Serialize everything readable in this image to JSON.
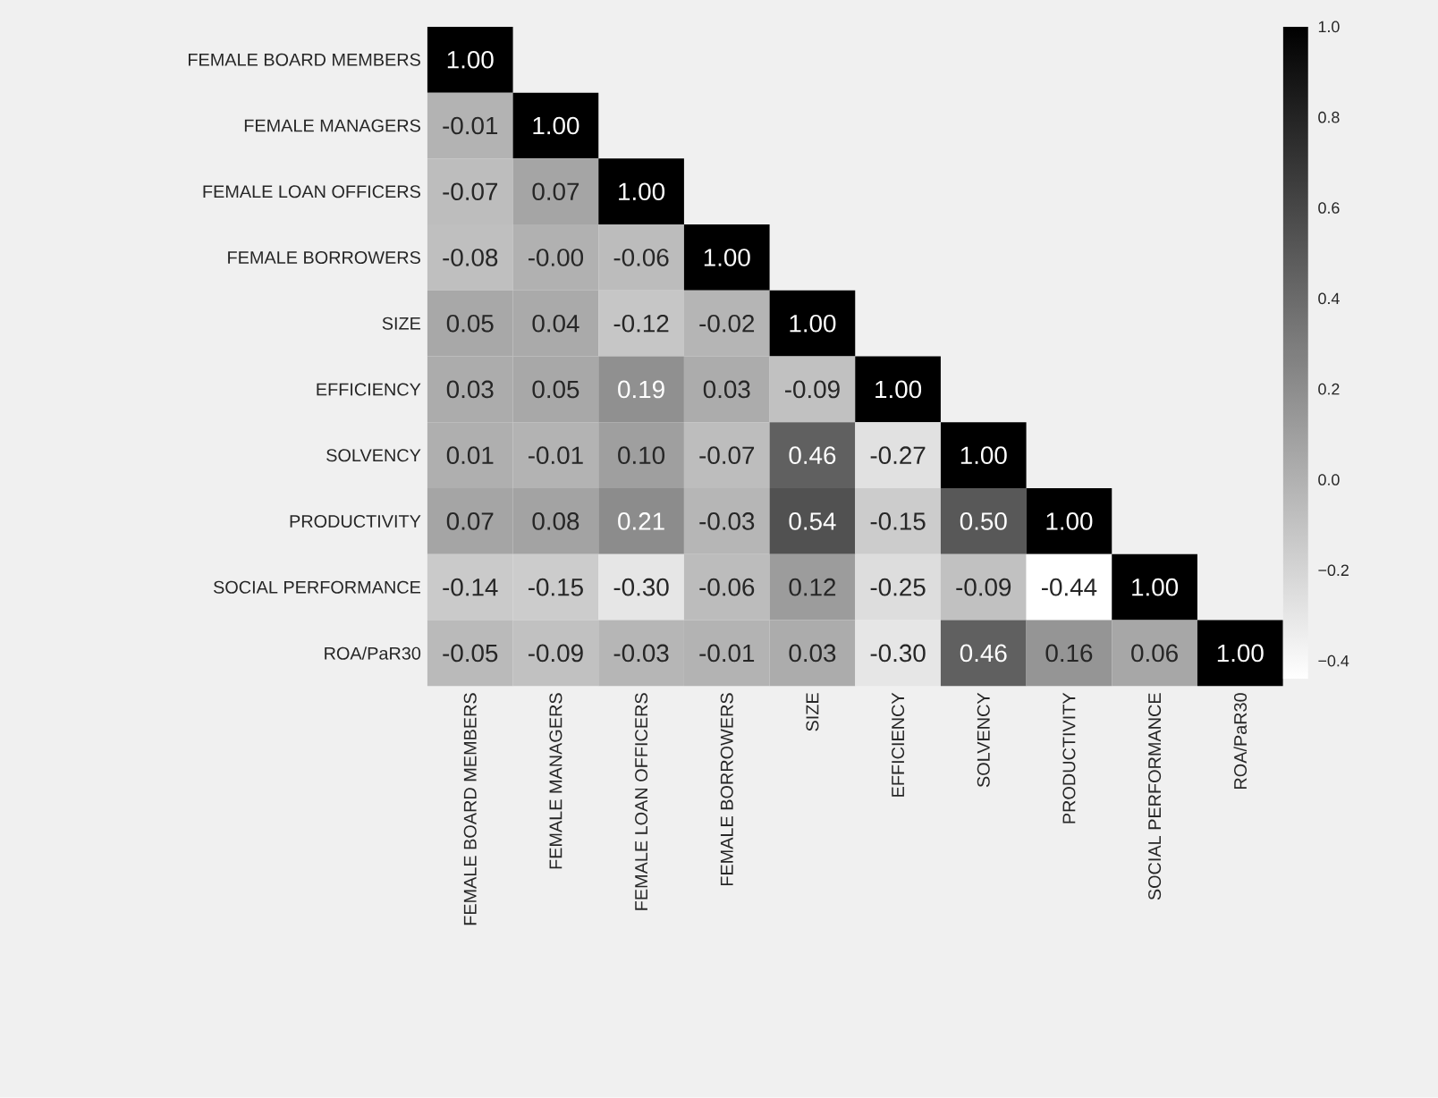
{
  "chart_data": {
    "type": "heatmap",
    "categories": [
      "FEMALE BOARD MEMBERS",
      "FEMALE MANAGERS",
      "FEMALE LOAN OFFICERS",
      "FEMALE BORROWERS",
      "SIZE",
      "EFFICIENCY",
      "SOLVENCY",
      "PRODUCTIVITY",
      "SOCIAL PERFORMANCE",
      "ROA/PaR30"
    ],
    "y_categories": [
      "FEMALE BOARD MEMBERS",
      "FEMALE MANAGERS",
      "FEMALE LOAN OFFICERS",
      "FEMALE BORROWERS",
      "SIZE",
      "EFFICIENCY",
      "SOLVENCY",
      "PRODUCTIVITY",
      "SOCIAL PERFORMANCE",
      "ROA/PaR30"
    ],
    "cells": [
      [
        1.0,
        null,
        null,
        null,
        null,
        null,
        null,
        null,
        null,
        null
      ],
      [
        -0.01,
        1.0,
        null,
        null,
        null,
        null,
        null,
        null,
        null,
        null
      ],
      [
        -0.07,
        0.07,
        1.0,
        null,
        null,
        null,
        null,
        null,
        null,
        null
      ],
      [
        -0.08,
        0.0,
        -0.06,
        1.0,
        null,
        null,
        null,
        null,
        null,
        null
      ],
      [
        0.05,
        0.04,
        -0.12,
        -0.02,
        1.0,
        null,
        null,
        null,
        null,
        null
      ],
      [
        0.03,
        0.05,
        0.19,
        0.03,
        -0.09,
        1.0,
        null,
        null,
        null,
        null
      ],
      [
        0.01,
        -0.01,
        0.1,
        -0.07,
        0.46,
        -0.27,
        1.0,
        null,
        null,
        null
      ],
      [
        0.07,
        0.08,
        0.21,
        -0.03,
        0.54,
        -0.15,
        0.5,
        1.0,
        null,
        null
      ],
      [
        -0.14,
        -0.15,
        -0.3,
        -0.06,
        0.12,
        -0.25,
        -0.09,
        -0.44,
        1.0,
        null
      ],
      [
        -0.05,
        -0.09,
        -0.03,
        -0.01,
        0.03,
        -0.3,
        0.46,
        0.16,
        0.06,
        1.0
      ]
    ],
    "cell_labels": [
      [
        "1.00",
        null,
        null,
        null,
        null,
        null,
        null,
        null,
        null,
        null
      ],
      [
        "-0.01",
        "1.00",
        null,
        null,
        null,
        null,
        null,
        null,
        null,
        null
      ],
      [
        "-0.07",
        "0.07",
        "1.00",
        null,
        null,
        null,
        null,
        null,
        null,
        null
      ],
      [
        "-0.08",
        "-0.00",
        "-0.06",
        "1.00",
        null,
        null,
        null,
        null,
        null,
        null
      ],
      [
        "0.05",
        "0.04",
        "-0.12",
        "-0.02",
        "1.00",
        null,
        null,
        null,
        null,
        null
      ],
      [
        "0.03",
        "0.05",
        "0.19",
        "0.03",
        "-0.09",
        "1.00",
        null,
        null,
        null,
        null
      ],
      [
        "0.01",
        "-0.01",
        "0.10",
        "-0.07",
        "0.46",
        "-0.27",
        "1.00",
        null,
        null,
        null
      ],
      [
        "0.07",
        "0.08",
        "0.21",
        "-0.03",
        "0.54",
        "-0.15",
        "0.50",
        "1.00",
        null,
        null
      ],
      [
        "-0.14",
        "-0.15",
        "-0.30",
        "-0.06",
        "0.12",
        "-0.25",
        "-0.09",
        "-0.44",
        "1.00",
        null
      ],
      [
        "-0.05",
        "-0.09",
        "-0.03",
        "-0.01",
        "0.03",
        "-0.30",
        "0.46",
        "0.16",
        "0.06",
        "1.00"
      ]
    ],
    "clim": [
      -0.44,
      1.0
    ],
    "cticks": [
      {
        "value": 1.0,
        "label": "1.0"
      },
      {
        "value": 0.8,
        "label": "0.8"
      },
      {
        "value": 0.6,
        "label": "0.6"
      },
      {
        "value": 0.4,
        "label": "0.4"
      },
      {
        "value": 0.2,
        "label": "0.2"
      },
      {
        "value": 0.0,
        "label": "0.0"
      },
      {
        "value": -0.2,
        "label": "−0.2"
      },
      {
        "value": -0.4,
        "label": "−0.4"
      }
    ]
  }
}
